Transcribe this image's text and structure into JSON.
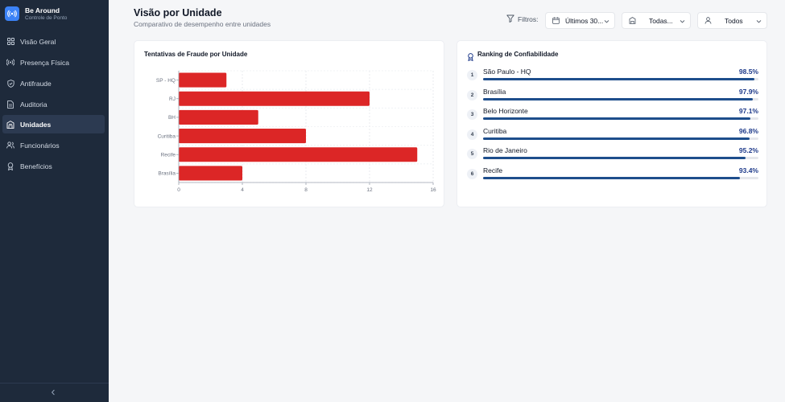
{
  "app": {
    "name": "Be Around",
    "subtitle": "Controle de Ponto"
  },
  "sidebar": {
    "items": [
      {
        "label": "Visão Geral",
        "icon": "dashboard-icon",
        "active": false
      },
      {
        "label": "Presença Física",
        "icon": "signal-icon",
        "active": false
      },
      {
        "label": "Antifraude",
        "icon": "shield-icon",
        "active": false
      },
      {
        "label": "Auditoria",
        "icon": "document-icon",
        "active": false
      },
      {
        "label": "Unidades",
        "icon": "building-icon",
        "active": true
      },
      {
        "label": "Funcionários",
        "icon": "users-icon",
        "active": false
      },
      {
        "label": "Benefícios",
        "icon": "award-icon",
        "active": false
      }
    ],
    "collapse_icon": "chevron-left-icon"
  },
  "header": {
    "title": "Visão por Unidade",
    "subtitle": "Comparativo de desempenho entre unidades",
    "filters_label": "Filtros:",
    "period": "Últimos 30...",
    "units": "Todas...",
    "people": "Todos"
  },
  "fraud_card": {
    "title": "Tentativas de Fraude por Unidade"
  },
  "chart_data": {
    "type": "bar",
    "orientation": "horizontal",
    "title": "Tentativas de Fraude por Unidade",
    "categories": [
      "SP - HQ",
      "RJ",
      "BH",
      "Curitiba",
      "Recife",
      "Brasília"
    ],
    "values": [
      3,
      12,
      5,
      8,
      15,
      4
    ],
    "xlim": [
      0,
      16
    ],
    "xticks": [
      "0",
      "4",
      "8",
      "12",
      "16"
    ],
    "grid": true,
    "color": "#dc2626"
  },
  "ranking_card": {
    "title": "Ranking de Confiabilidade",
    "icon": "award-icon",
    "items": [
      {
        "rank": "1",
        "name": "São Paulo - HQ",
        "value": "98.5%",
        "pct": 98.5
      },
      {
        "rank": "2",
        "name": "Brasília",
        "value": "97.9%",
        "pct": 97.9
      },
      {
        "rank": "3",
        "name": "Belo Horizonte",
        "value": "97.1%",
        "pct": 97.1
      },
      {
        "rank": "4",
        "name": "Curitiba",
        "value": "96.8%",
        "pct": 96.8
      },
      {
        "rank": "5",
        "name": "Rio de Janeiro",
        "value": "95.2%",
        "pct": 95.2
      },
      {
        "rank": "6",
        "name": "Recife",
        "value": "93.4%",
        "pct": 93.4
      }
    ]
  },
  "colors": {
    "sidebar_bg": "#1e2a3b",
    "accent": "#3b82f6",
    "bar": "#dc2626",
    "rank_bar": "#1e4e8c"
  }
}
